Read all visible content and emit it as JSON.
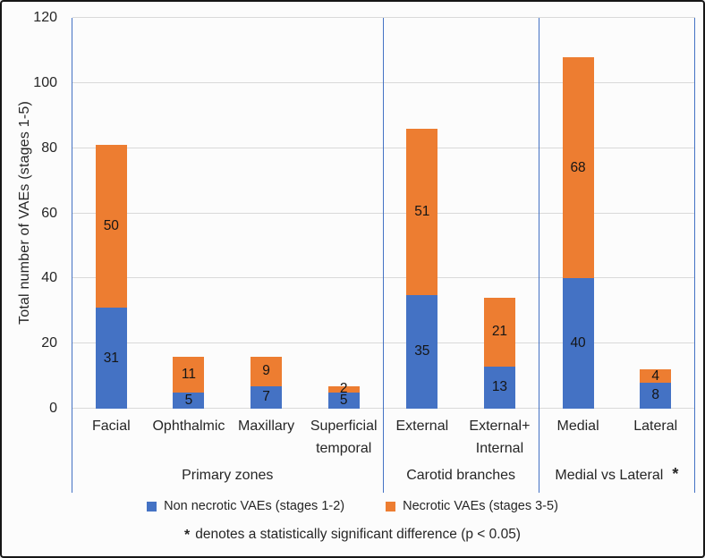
{
  "chart_data": {
    "type": "bar",
    "stacked": true,
    "title": "",
    "ylabel": "Total number of VAEs (stages 1-5)",
    "xlabel": "",
    "ylim": [
      0,
      120
    ],
    "yticks": [
      0,
      20,
      40,
      60,
      80,
      100,
      120
    ],
    "grid": true,
    "legend_position": "bottom",
    "colors": {
      "non_necrotic": "#4472C4",
      "necrotic": "#ED7D31",
      "axis_line": "#4472C4",
      "gridline": "#D9D9D9"
    },
    "series": [
      {
        "key": "non_necrotic",
        "name": "Non necrotic VAEs (stages 1-2)"
      },
      {
        "key": "necrotic",
        "name": "Necrotic VAEs (stages 3-5)"
      }
    ],
    "groups": [
      {
        "label": "Primary zones",
        "bars": [
          {
            "category": "Facial",
            "category_lines": [
              "Facial"
            ],
            "non_necrotic": 31,
            "necrotic": 50
          },
          {
            "category": "Ophthalmic",
            "category_lines": [
              "Ophthalmic"
            ],
            "non_necrotic": 5,
            "necrotic": 11
          },
          {
            "category": "Maxillary",
            "category_lines": [
              "Maxillary"
            ],
            "non_necrotic": 7,
            "necrotic": 9
          },
          {
            "category": "Superficial temporal",
            "category_lines": [
              "Superficial",
              "temporal"
            ],
            "non_necrotic": 5,
            "necrotic": 2
          }
        ]
      },
      {
        "label": "Carotid branches",
        "bars": [
          {
            "category": "External",
            "category_lines": [
              "External"
            ],
            "non_necrotic": 35,
            "necrotic": 51
          },
          {
            "category": "External+Internal",
            "category_lines": [
              "External+",
              "Internal"
            ],
            "non_necrotic": 13,
            "necrotic": 21
          }
        ]
      },
      {
        "label": "Medial vs Lateral",
        "marker": "*",
        "bars": [
          {
            "category": "Medial",
            "category_lines": [
              "Medial"
            ],
            "non_necrotic": 40,
            "necrotic": 68
          },
          {
            "category": "Lateral",
            "category_lines": [
              "Lateral"
            ],
            "non_necrotic": 8,
            "necrotic": 4
          }
        ]
      }
    ],
    "footnote_marker": "*",
    "footnote_text": "denotes a statistically significant difference (p < 0.05)"
  }
}
